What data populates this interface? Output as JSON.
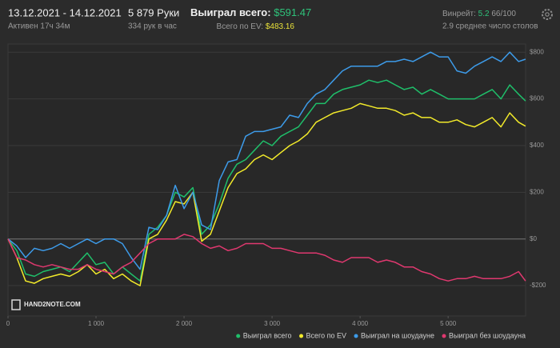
{
  "header": {
    "dates": "13.12.2021 - 14.12.2021",
    "active": "Активен 17ч 34м",
    "hands": "5 879 Руки",
    "hands_per_hour": "334 рук в час",
    "won_total_label": "Выиграл всего:",
    "won_total": "$591.47",
    "ev_total_label": "Всего по EV:",
    "ev_total": "$483.16",
    "winrate_label": "Винрейт:",
    "winrate": "5.2",
    "winrate_unit": "66/100",
    "tables": "2.9 среднее число столов"
  },
  "logo": "HAND2NOTE.COM",
  "chart_data": {
    "type": "line",
    "x": [
      0,
      100,
      200,
      300,
      400,
      500,
      600,
      700,
      800,
      900,
      1000,
      1100,
      1200,
      1300,
      1400,
      1500,
      1600,
      1700,
      1800,
      1900,
      2000,
      2100,
      2200,
      2300,
      2400,
      2500,
      2600,
      2700,
      2800,
      2900,
      3000,
      3100,
      3200,
      3300,
      3400,
      3500,
      3600,
      3700,
      3800,
      3900,
      4000,
      4100,
      4200,
      4300,
      4400,
      4500,
      4600,
      4700,
      4800,
      4900,
      5000,
      5100,
      5200,
      5300,
      5400,
      5500,
      5600,
      5700,
      5800,
      5879
    ],
    "xlim": [
      0,
      5880
    ],
    "xticks": [
      0,
      {
        "value": 1000,
        "label": "1 000"
      },
      {
        "value": 2000,
        "label": "2 000"
      },
      {
        "value": 3000,
        "label": "3 000"
      },
      {
        "value": 4000,
        "label": "4 000"
      },
      {
        "value": 5000,
        "label": "5 000"
      }
    ],
    "ylim": [
      -330,
      835
    ],
    "yticks": [
      {
        "value": 800,
        "label": "$800"
      },
      {
        "value": 600,
        "label": "$600"
      },
      {
        "value": 400,
        "label": "$400"
      },
      {
        "value": 200,
        "label": "$200"
      },
      {
        "value": 0,
        "label": "$0"
      },
      {
        "value": -200,
        "label": "-$200"
      }
    ],
    "grid": true,
    "legend": "bottom-right",
    "series": [
      {
        "name": "Выиграл всего",
        "color": "#1fbf6a",
        "values": [
          0,
          -50,
          -150,
          -160,
          -140,
          -130,
          -120,
          -140,
          -100,
          -60,
          -110,
          -100,
          -150,
          -120,
          -150,
          -180,
          20,
          50,
          100,
          200,
          180,
          220,
          20,
          60,
          150,
          260,
          320,
          340,
          380,
          420,
          400,
          440,
          460,
          480,
          530,
          580,
          580,
          620,
          640,
          650,
          660,
          680,
          670,
          680,
          660,
          640,
          650,
          620,
          640,
          620,
          600,
          600,
          600,
          600,
          620,
          640,
          600,
          660,
          620,
          591
        ]
      },
      {
        "name": "Всего по EV",
        "color": "#f2ea2a",
        "values": [
          0,
          -80,
          -180,
          -190,
          -170,
          -160,
          -150,
          -160,
          -140,
          -110,
          -150,
          -130,
          -170,
          -150,
          -180,
          -200,
          0,
          20,
          80,
          160,
          150,
          200,
          -10,
          20,
          120,
          220,
          280,
          300,
          340,
          360,
          340,
          370,
          400,
          420,
          450,
          500,
          520,
          540,
          550,
          560,
          580,
          570,
          560,
          560,
          550,
          530,
          540,
          520,
          520,
          500,
          500,
          510,
          490,
          480,
          500,
          520,
          480,
          540,
          500,
          483
        ]
      },
      {
        "name": "Выиграл на шоудауне",
        "color": "#3d9be9",
        "values": [
          0,
          -30,
          -80,
          -40,
          -50,
          -40,
          -20,
          -40,
          -20,
          0,
          -20,
          0,
          0,
          -20,
          -80,
          -130,
          50,
          40,
          100,
          230,
          130,
          200,
          60,
          40,
          250,
          330,
          340,
          440,
          460,
          460,
          470,
          480,
          530,
          520,
          580,
          620,
          640,
          680,
          720,
          740,
          740,
          740,
          740,
          760,
          760,
          770,
          760,
          780,
          800,
          780,
          780,
          720,
          710,
          740,
          760,
          780,
          760,
          800,
          760,
          770
        ]
      },
      {
        "name": "Выиграл без шоудауна",
        "color": "#e0386f",
        "values": [
          0,
          -80,
          -90,
          -110,
          -120,
          -110,
          -120,
          -130,
          -130,
          -110,
          -130,
          -140,
          -150,
          -120,
          -100,
          -60,
          -20,
          0,
          0,
          0,
          20,
          10,
          -20,
          -40,
          -30,
          -50,
          -40,
          -20,
          -20,
          -20,
          -40,
          -40,
          -50,
          -60,
          -60,
          -60,
          -70,
          -90,
          -100,
          -80,
          -80,
          -80,
          -100,
          -90,
          -100,
          -120,
          -120,
          -140,
          -150,
          -170,
          -180,
          -170,
          -170,
          -160,
          -170,
          -170,
          -170,
          -160,
          -140,
          -180
        ]
      }
    ]
  }
}
